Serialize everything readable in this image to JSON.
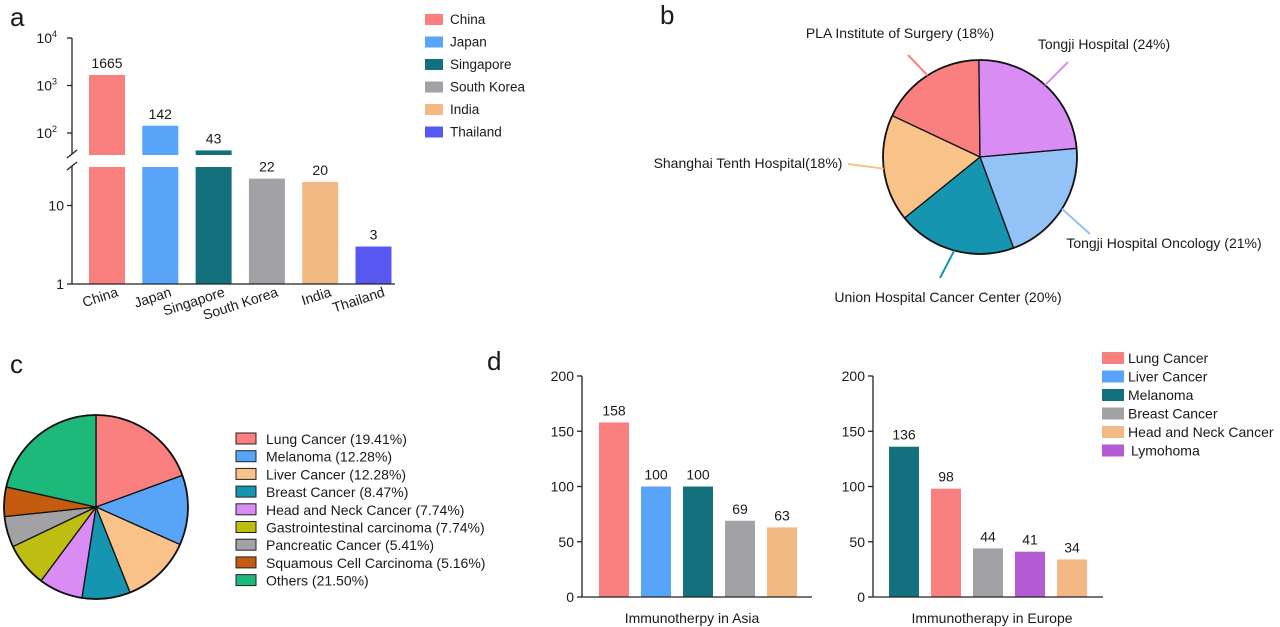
{
  "panels": {
    "a": "a",
    "b": "b",
    "c": "c",
    "d": "d"
  },
  "colors": {
    "china": "#FA8080",
    "japan": "#58A4F8",
    "singapore": "#12717C",
    "south_korea": "#A2A1A6",
    "india": "#F3B984",
    "thailand": "#5757F2",
    "pie_b": [
      "#FA8080",
      "#DA8CF5",
      "#93C2F7",
      "#1695B0",
      "#F9C289"
    ],
    "pie_c": [
      "#FA8080",
      "#58A4F8",
      "#F9C289",
      "#1695B0",
      "#DA8CF5",
      "#BDBD12",
      "#A2A1A6",
      "#C45C10",
      "#1DB97B"
    ],
    "d_lung": "#FA8080",
    "d_liver": "#58A4F8",
    "d_melanoma": "#12717C",
    "d_breast": "#A2A1A6",
    "d_headneck": "#F3B984",
    "d_lymoma": "#B55BD4"
  },
  "chart_data": [
    {
      "id": "a",
      "type": "bar",
      "scale": "log-broken",
      "categories": [
        "China",
        "Japan",
        "Singapore",
        "South Korea",
        "India",
        "Thailand"
      ],
      "values": [
        1665,
        142,
        43,
        22,
        20,
        3
      ],
      "data_labels": [
        "1665",
        "142",
        "43",
        "22",
        "20",
        "3"
      ],
      "yticks": [
        {
          "value": 1,
          "label": "1"
        },
        {
          "value": 10,
          "label": "10"
        },
        {
          "value": 100,
          "base": "10",
          "exp": "2"
        },
        {
          "value": 1000,
          "base": "10",
          "exp": "3"
        },
        {
          "value": 10000,
          "base": "10",
          "exp": "4"
        }
      ],
      "ylim": [
        1,
        10000
      ],
      "legend": [
        "China",
        "Japan",
        "Singapore",
        "South Korea",
        "India",
        "Thailand"
      ],
      "legend_position": "right"
    },
    {
      "id": "b",
      "type": "pie",
      "labels": [
        "PLA Institute of Surgery (18%)",
        "Tongji Hospital (24%)",
        "Tongji Hospital Oncology (21%)",
        "Union Hospital Cancer Center (20%)",
        "Shanghai Tenth Hospital(18%)"
      ],
      "values": [
        18,
        24,
        21,
        20,
        18
      ],
      "order": [
        "PLA Institute of Surgery",
        "Tongji Hospital",
        "Tongji Hospital Oncology",
        "Union Hospital Cancer Center",
        "Shanghai Tenth Hospital"
      ]
    },
    {
      "id": "c",
      "type": "pie",
      "labels": [
        "Lung Cancer (19.41%)",
        "Melanoma (12.28%)",
        "Liver Cancer (12.28%)",
        "Breast Cancer (8.47%)",
        "Head and Neck Cancer (7.74%)",
        "Gastrointestinal carcinoma (7.74%)",
        "Pancreatic Cancer (5.41%)",
        "Squamous Cell Carcinoma (5.16%)",
        "Others (21.50%)"
      ],
      "values": [
        19.41,
        12.28,
        12.28,
        8.47,
        7.74,
        7.74,
        5.41,
        5.16,
        21.5
      ],
      "legend_position": "right"
    },
    {
      "id": "d1",
      "type": "bar",
      "xlabel": "Immunotherpy in Asia",
      "categories": [
        "Lung Cancer",
        "Liver Cancer",
        "Melanoma",
        "Breast Cancer",
        "Head and Neck Cancer"
      ],
      "values": [
        158,
        100,
        100,
        69,
        63
      ],
      "data_labels": [
        "158",
        "100",
        "100",
        "69",
        "63"
      ],
      "ylim": [
        0,
        200
      ],
      "yticks": [
        "0",
        "50",
        "100",
        "150",
        "200"
      ]
    },
    {
      "id": "d2",
      "type": "bar",
      "xlabel": "Immunotherapy in Europe",
      "categories": [
        "Melanoma",
        "Lung Cancer",
        "Breast Cancer",
        "Lymohoma",
        "Head and Neck Cancer"
      ],
      "values": [
        136,
        98,
        44,
        41,
        34
      ],
      "data_labels": [
        "136",
        "98",
        "44",
        "41",
        "34"
      ],
      "ylim": [
        0,
        200
      ],
      "yticks": [
        "0",
        "50",
        "100",
        "150",
        "200"
      ]
    }
  ],
  "legend_d": [
    "Lung Cancer",
    "Liver Cancer",
    "Melanoma",
    "Breast Cancer",
    "Head and Neck Cancer",
    "Lymohoma"
  ]
}
